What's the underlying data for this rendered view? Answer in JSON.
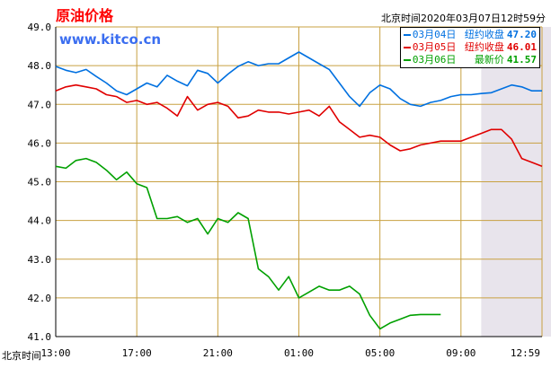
{
  "header": {
    "title": "原油价格",
    "brand": "www.kitco.cn",
    "timestamp": "北京时间2020年03月07日12时59分"
  },
  "colors": {
    "background": "#ffffff",
    "grid": "#c8a040",
    "axis": "#000000",
    "highlight": "#e8e4ec",
    "title": "#ff0000",
    "brand": "#3b6ef0"
  },
  "chart_data": {
    "type": "line",
    "xlabel": "北京时间",
    "x_ticks": [
      "13:00",
      "17:00",
      "21:00",
      "01:00",
      "05:00",
      "09:00",
      "12:59"
    ],
    "x_range": [
      0,
      24
    ],
    "ylim": [
      41.0,
      49.0
    ],
    "y_ticks": [
      "41.0",
      "42.0",
      "43.0",
      "44.0",
      "45.0",
      "46.0",
      "47.0",
      "48.0",
      "49.0"
    ],
    "grid": true,
    "legend_position": "top-right",
    "highlight_band": [
      21.0,
      26.6
    ],
    "series": [
      {
        "name": "03月04日",
        "label": "纽约收盘",
        "value": "47.20",
        "color": "#0070e0",
        "x": [
          0,
          0.5,
          1,
          1.5,
          2,
          2.5,
          3,
          3.5,
          4,
          4.5,
          5,
          5.5,
          6,
          6.5,
          7,
          7.5,
          8,
          8.5,
          9,
          9.5,
          10,
          10.5,
          11,
          11.5,
          12,
          12.5,
          13,
          13.5,
          14,
          14.5,
          15,
          15.5,
          16,
          16.5,
          17,
          17.5,
          18,
          18.5,
          19,
          19.5,
          20,
          20.5,
          21,
          21.5,
          22,
          22.5,
          23,
          23.5,
          24
        ],
        "y": [
          47.98,
          47.88,
          47.82,
          47.9,
          47.72,
          47.55,
          47.35,
          47.25,
          47.4,
          47.55,
          47.45,
          47.75,
          47.6,
          47.48,
          47.88,
          47.8,
          47.55,
          47.78,
          47.98,
          48.1,
          48.0,
          48.05,
          48.05,
          48.2,
          48.35,
          48.2,
          48.05,
          47.9,
          47.55,
          47.2,
          46.95,
          47.3,
          47.5,
          47.4,
          47.15,
          47.0,
          46.95,
          47.05,
          47.1,
          47.2,
          47.25,
          47.25,
          47.28,
          47.3,
          47.4,
          47.5,
          47.45,
          47.35,
          47.35
        ]
      },
      {
        "name": "03月05日",
        "label": "纽约收盘",
        "value": "46.01",
        "color": "#e00000",
        "x": [
          0,
          0.5,
          1,
          1.5,
          2,
          2.5,
          3,
          3.5,
          4,
          4.5,
          5,
          5.5,
          6,
          6.5,
          7,
          7.5,
          8,
          8.5,
          9,
          9.5,
          10,
          10.5,
          11,
          11.5,
          12,
          12.5,
          13,
          13.5,
          14,
          14.5,
          15,
          15.5,
          16,
          16.5,
          17,
          17.5,
          18,
          18.5,
          19,
          19.5,
          20,
          20.5,
          21,
          21.5,
          22,
          22.5,
          23,
          23.5,
          24
        ],
        "y": [
          47.35,
          47.45,
          47.5,
          47.45,
          47.4,
          47.25,
          47.2,
          47.05,
          47.1,
          47.0,
          47.05,
          46.9,
          46.7,
          47.2,
          46.85,
          47.0,
          47.05,
          46.95,
          46.65,
          46.7,
          46.85,
          46.8,
          46.8,
          46.75,
          46.8,
          46.85,
          46.7,
          46.95,
          46.55,
          46.35,
          46.15,
          46.2,
          46.15,
          45.95,
          45.8,
          45.85,
          45.95,
          46.0,
          46.05,
          46.05,
          46.05,
          46.15,
          46.25,
          46.35,
          46.35,
          46.1,
          45.6,
          45.5,
          45.4
        ]
      },
      {
        "name": "03月06日",
        "label": "最新价",
        "value": "41.57",
        "color": "#00a000",
        "x": [
          0,
          0.5,
          1,
          1.5,
          2,
          2.5,
          3,
          3.5,
          4,
          4.5,
          5,
          5.5,
          6,
          6.5,
          7,
          7.5,
          8,
          8.5,
          9,
          9.5,
          10,
          10.5,
          11,
          11.5,
          12,
          12.5,
          13,
          13.5,
          14,
          14.5,
          15,
          15.5,
          16,
          16.5,
          17,
          17.5,
          18,
          18.5,
          19
        ],
        "y": [
          45.4,
          45.35,
          45.55,
          45.6,
          45.5,
          45.3,
          45.05,
          45.25,
          44.95,
          44.85,
          44.05,
          44.05,
          44.1,
          43.95,
          44.05,
          43.65,
          44.05,
          43.95,
          44.2,
          44.05,
          42.75,
          42.55,
          42.2,
          42.55,
          42.0,
          42.15,
          42.3,
          42.2,
          42.2,
          42.3,
          42.1,
          41.55,
          41.2,
          41.35,
          41.45,
          41.55,
          41.57,
          41.57,
          41.57
        ]
      }
    ]
  }
}
